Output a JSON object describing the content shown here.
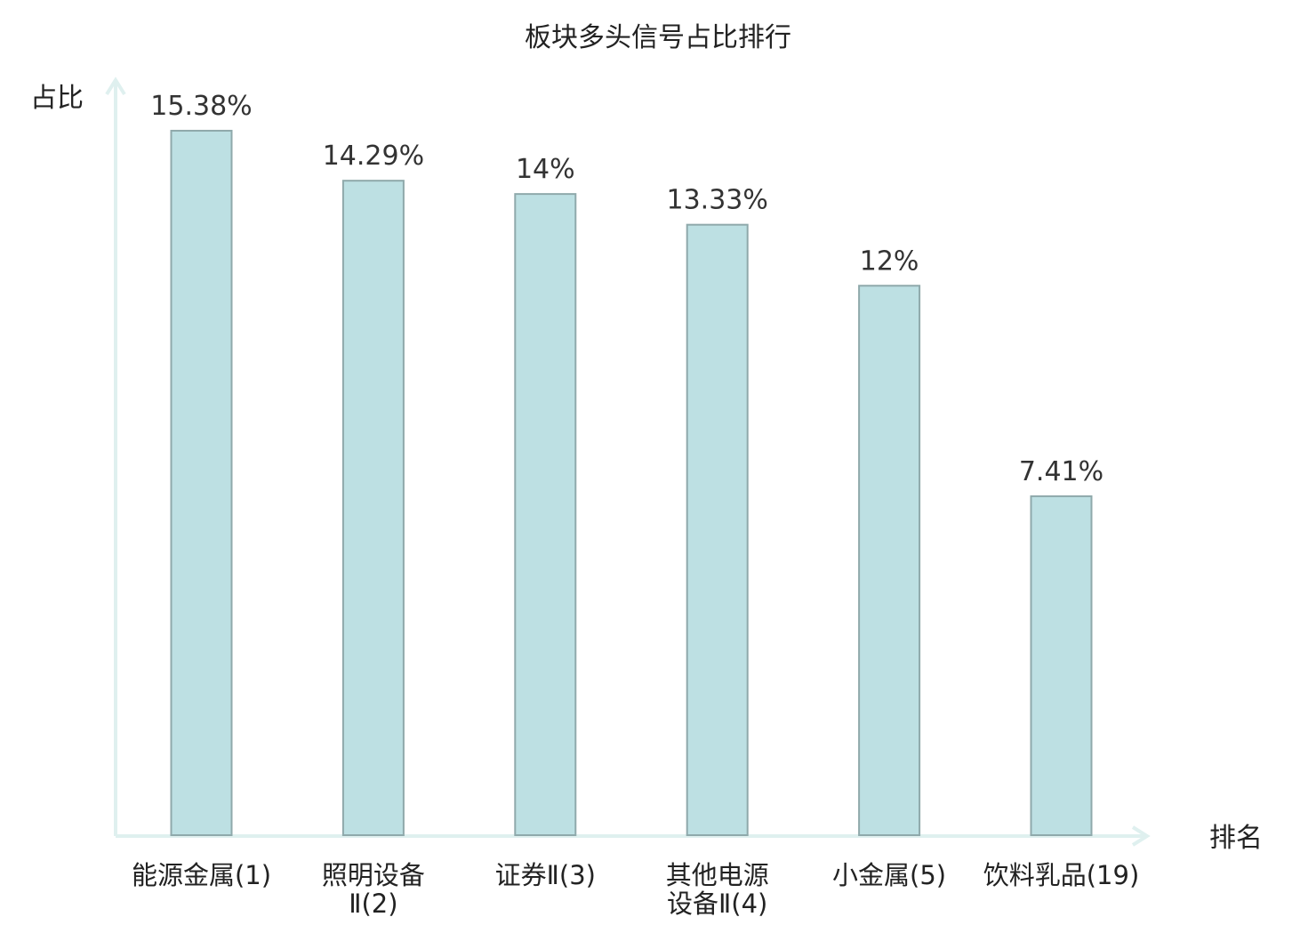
{
  "chart_data": {
    "type": "bar",
    "title": "板块多头信号占比排行",
    "ylabel": "占比",
    "xlabel": "排名",
    "categories": [
      [
        "能源金属(1)"
      ],
      [
        "照明设备",
        "Ⅱ(2)"
      ],
      [
        "证券Ⅱ(3)"
      ],
      [
        "其他电源",
        "设备Ⅱ(4)"
      ],
      [
        "小金属(5)"
      ],
      [
        "饮料乳品(19)"
      ]
    ],
    "values": [
      15.38,
      14.29,
      14,
      13.33,
      12,
      7.41
    ],
    "value_labels": [
      "15.38%",
      "14.29%",
      "14%",
      "13.33%",
      "12%",
      "7.41%"
    ],
    "highlight_index": 5,
    "ylim": [
      0,
      16
    ],
    "grid": false,
    "colors": {
      "bar_fill": "#bde0e3",
      "bar_stroke": "#8fa9ab",
      "axis": "#dff0ef",
      "text": "#222222",
      "value_text": "#333333",
      "highlight": "#e8191c"
    }
  }
}
